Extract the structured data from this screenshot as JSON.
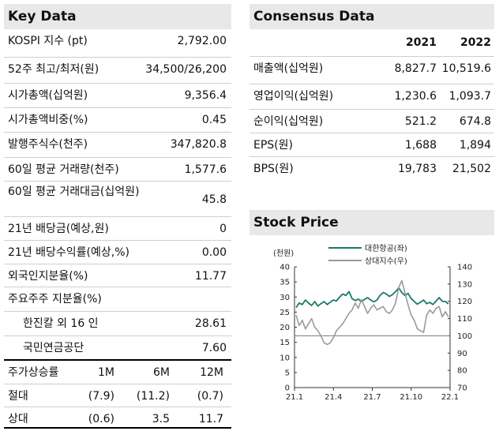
{
  "key_data": {
    "title": "Key Data",
    "rows": [
      {
        "label": "KOSPI 지수 (pt)",
        "value": "2,792.00"
      },
      {
        "label": "52주 최고/최저(원)",
        "value": "34,500/26,200"
      },
      {
        "label": "시가총액(십억원)",
        "value": "9,356.4"
      },
      {
        "label": "시가총액비중(%)",
        "value": "0.45"
      },
      {
        "label": "발행주식수(천주)",
        "value": "347,820.8"
      },
      {
        "label": "60일 평균 거래량(천주)",
        "value": "1,577.6"
      },
      {
        "label": "60일 평균 거래대금(십억원)",
        "value": "45.8"
      },
      {
        "label": "21년 배당금(예상,원)",
        "value": "0"
      },
      {
        "label": "21년 배당수익률(예상,%)",
        "value": "0.00"
      },
      {
        "label": "외국인지분율(%)",
        "value": "11.77"
      },
      {
        "label": "주요주주 지분율(%)",
        "value": ""
      },
      {
        "label": "한진칼 외 16 인",
        "value": "28.61"
      },
      {
        "label": "국민연금공단",
        "value": "7.60"
      }
    ],
    "perf": {
      "header": [
        "주가상승률",
        "1M",
        "6M",
        "12M"
      ],
      "rows": [
        [
          "절대",
          "(7.9)",
          "(11.2)",
          "(0.7)"
        ],
        [
          "상대",
          "(0.6)",
          "3.5",
          "11.7"
        ]
      ]
    }
  },
  "consensus": {
    "title": "Consensus Data",
    "years": [
      "2021",
      "2022"
    ],
    "rows": [
      {
        "label": "매출액(십억원)",
        "values": [
          "8,827.7",
          "10,519.6"
        ]
      },
      {
        "label": "영업이익(십억원)",
        "values": [
          "1,230.6",
          "1,093.7"
        ]
      },
      {
        "label": "순이익(십억원)",
        "values": [
          "521.2",
          "674.8"
        ]
      },
      {
        "label": "EPS(원)",
        "values": [
          "1,688",
          "1,894"
        ]
      },
      {
        "label": "BPS(원)",
        "values": [
          "19,783",
          "21,502"
        ]
      }
    ]
  },
  "stock_price": {
    "title": "Stock Price",
    "y_left_unit": "(천원)",
    "legend_price": "대한항공(좌)",
    "legend_rel": "상대지수(우)",
    "price_color": "#1a7a6a",
    "rel_color": "#9a9a9a"
  },
  "chart_data": {
    "type": "line",
    "x_ticks": [
      "21.1",
      "21.4",
      "21.7",
      "21.10",
      "22.1"
    ],
    "left_axis": {
      "ticks": [
        0,
        5,
        10,
        15,
        20,
        25,
        30,
        35,
        40
      ],
      "ylim": [
        0,
        40
      ]
    },
    "right_axis": {
      "ticks": [
        70,
        80,
        90,
        100,
        110,
        120,
        130,
        140
      ],
      "ylim": [
        70,
        140
      ]
    },
    "series": [
      {
        "name": "대한항공(좌)",
        "axis": "left",
        "values": [
          26.5,
          28.0,
          27.5,
          29.0,
          28.0,
          27.2,
          28.5,
          27.0,
          27.8,
          28.5,
          27.5,
          28.3,
          29.0,
          28.7,
          30.0,
          31.0,
          30.5,
          31.8,
          29.5,
          28.8,
          29.3,
          28.5,
          29.2,
          29.8,
          29.0,
          28.4,
          29.0,
          30.5,
          31.5,
          31.0,
          30.2,
          30.8,
          31.8,
          33.0,
          31.5,
          30.5,
          31.2,
          29.5,
          28.5,
          27.6,
          28.3,
          29.0,
          27.8,
          28.2,
          27.5,
          28.6,
          29.8,
          28.6,
          28.5,
          27.7
        ]
      },
      {
        "name": "상대지수(우)",
        "axis": "right",
        "values": [
          112,
          106,
          109,
          104,
          107,
          110,
          105,
          103,
          100,
          96,
          95,
          96,
          99,
          103,
          105,
          107,
          110,
          113,
          115,
          119,
          116,
          121,
          117,
          113,
          116,
          118,
          115,
          116,
          117,
          114,
          113,
          115,
          119,
          128,
          132,
          125,
          118,
          112,
          109,
          104,
          103,
          102,
          112,
          115,
          113,
          116,
          117,
          111,
          114,
          111
        ]
      }
    ]
  }
}
